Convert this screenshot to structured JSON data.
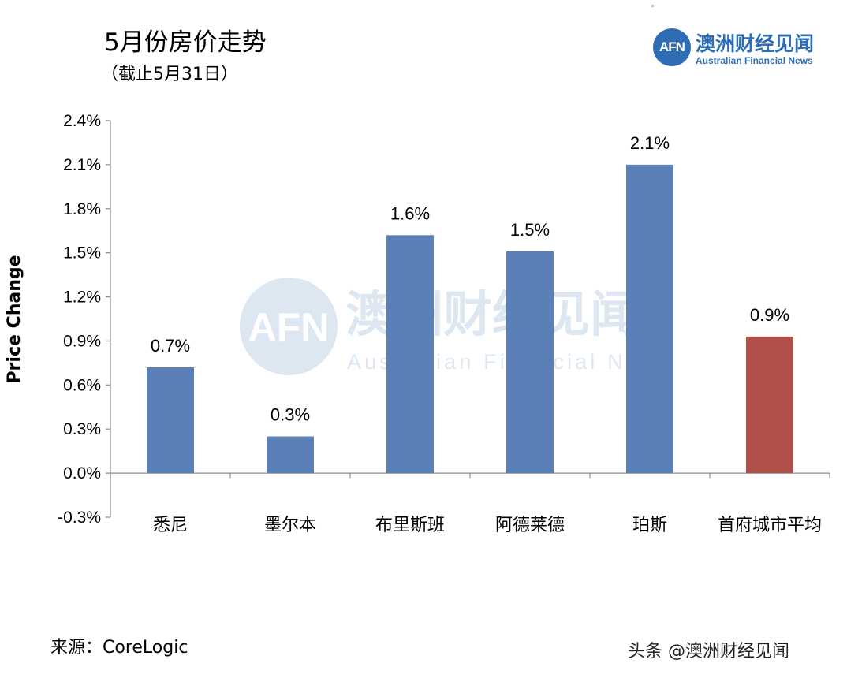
{
  "header": {
    "title": "5月份房价走势",
    "subtitle": "（截止5月31日）"
  },
  "logo": {
    "mark": "AFN",
    "name_cn": "澳洲财经见闻",
    "name_en": "Australian Financial News"
  },
  "watermark": {
    "mark": "AFN",
    "name_cn": "澳洲财经见闻",
    "name_en": "Australian Financial News"
  },
  "footer": {
    "source": "来源：CoreLogic",
    "credit": "头条 @澳洲财经见闻"
  },
  "chart_data": {
    "type": "bar",
    "title": "5月份房价走势",
    "subtitle": "（截止5月31日）",
    "xlabel": "",
    "ylabel": "Price Change",
    "ylim": [
      -0.3,
      2.4
    ],
    "yticks": [
      "2.4%",
      "2.1%",
      "1.8%",
      "1.5%",
      "1.2%",
      "0.9%",
      "0.6%",
      "0.3%",
      "0.0%",
      "-0.3%"
    ],
    "ytick_values": [
      2.4,
      2.1,
      1.8,
      1.5,
      1.2,
      0.9,
      0.6,
      0.3,
      0.0,
      -0.3
    ],
    "categories": [
      "悉尼",
      "墨尔本",
      "布里斯班",
      "阿德莱德",
      "珀斯",
      "首府城市平均"
    ],
    "values": [
      0.72,
      0.25,
      1.62,
      1.51,
      2.1,
      0.93
    ],
    "data_labels": [
      "0.7%",
      "0.3%",
      "1.6%",
      "1.5%",
      "2.1%",
      "0.9%"
    ],
    "colors": [
      "#5b80b8",
      "#5b80b8",
      "#5b80b8",
      "#5b80b8",
      "#5b80b8",
      "#b0504b"
    ],
    "grid": false,
    "legend": "none"
  }
}
